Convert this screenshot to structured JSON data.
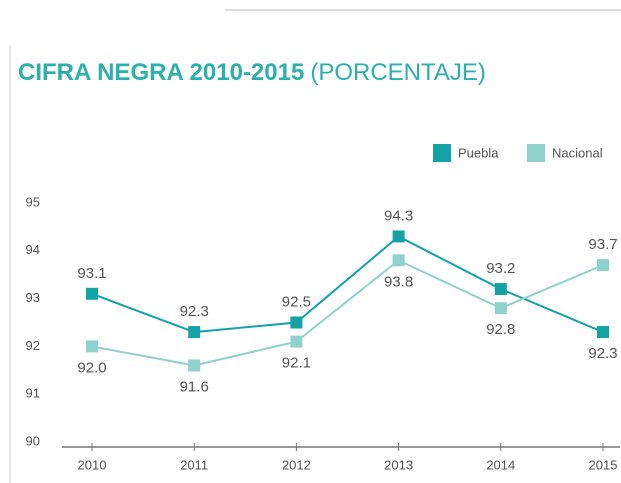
{
  "chart_data": {
    "type": "line",
    "title": "CIFRA NEGRA 2010-2015",
    "subtitle": "(PORCENTAJE)",
    "categories": [
      "2010",
      "2011",
      "2012",
      "2013",
      "2014",
      "2015"
    ],
    "series": [
      {
        "name": "Puebla",
        "color": "#14a3a5",
        "values": [
          93.1,
          92.3,
          92.5,
          94.3,
          93.2,
          92.3
        ],
        "value_labels": [
          "93.1",
          "92.3",
          "92.5",
          "94.3",
          "93.2",
          "92.3"
        ]
      },
      {
        "name": "Nacional",
        "color": "#8fd1cb",
        "values": [
          92.0,
          91.6,
          92.1,
          93.8,
          92.8,
          93.7
        ],
        "value_labels": [
          "92.0",
          "91.6",
          "92.1",
          "93.8",
          "92.8",
          "93.7"
        ]
      }
    ],
    "ylim": [
      90,
      95
    ],
    "yticks": [
      90,
      91,
      92,
      93,
      94,
      95
    ],
    "legend": "top-right"
  }
}
